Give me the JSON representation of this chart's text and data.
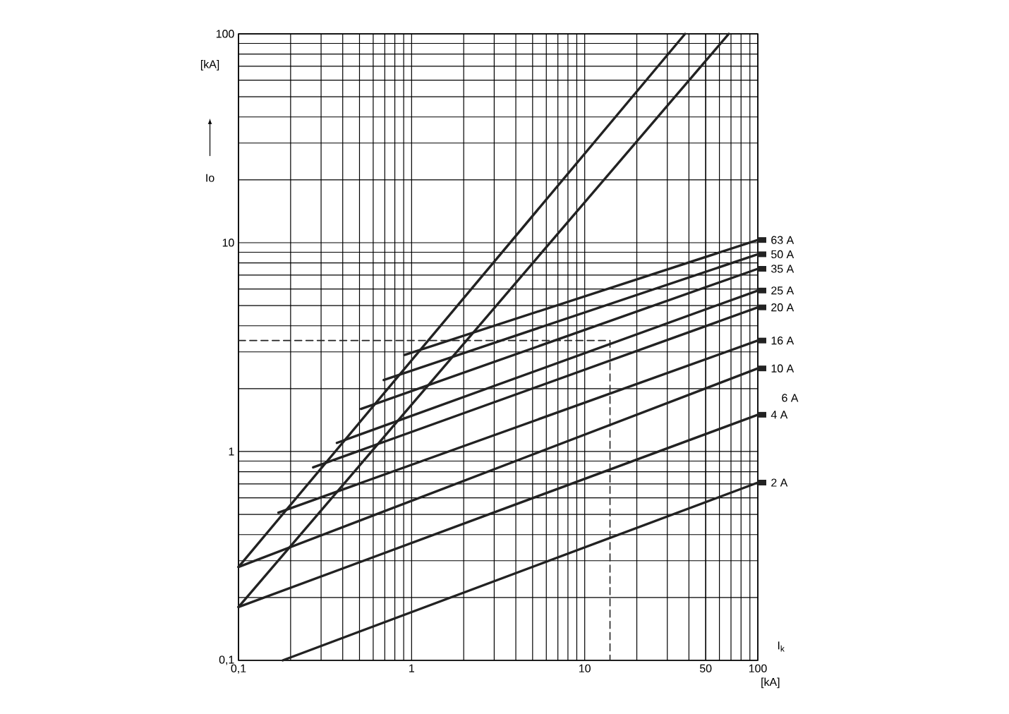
{
  "chart_data": {
    "type": "line",
    "xlabel": "I$_{k}$",
    "ylabel": "Io",
    "log": "xy",
    "grid": true,
    "legend": "right",
    "xlim": [
      0.1,
      100
    ],
    "ylim": [
      0.1,
      100
    ],
    "xticks": [
      {
        "value": 0.1,
        "label": "0,1"
      },
      1,
      10,
      50,
      100
    ],
    "yticks": [
      {
        "value": 0.1,
        "label": "0,1"
      },
      1,
      10,
      100
    ],
    "annotations": [
      "[kA]",
      "[kA]",
      "6 A"
    ],
    "series": [
      {
        "color": "#222222",
        "x": [
          0.1,
          38
        ],
        "values": [
          0.28,
          100
        ]
      },
      {
        "color": "#222222",
        "x": [
          0.1,
          68
        ],
        "values": [
          0.18,
          100
        ]
      },
      {
        "name": "63 A",
        "color": "#222222",
        "x": [
          0.91,
          100
        ],
        "values": [
          2.9,
          10.3
        ]
      },
      {
        "name": "50 A",
        "color": "#222222",
        "x": [
          0.69,
          100
        ],
        "values": [
          2.2,
          8.8
        ]
      },
      {
        "name": "35 A",
        "color": "#222222",
        "x": [
          0.51,
          100
        ],
        "values": [
          1.6,
          7.5
        ]
      },
      {
        "name": "25 A",
        "color": "#222222",
        "x": [
          0.37,
          100
        ],
        "values": [
          1.1,
          5.9
        ]
      },
      {
        "name": "20 A",
        "color": "#222222",
        "x": [
          0.27,
          100
        ],
        "values": [
          0.84,
          4.9
        ]
      },
      {
        "name": "16 A",
        "color": "#222222",
        "x": [
          0.17,
          100
        ],
        "values": [
          0.51,
          3.4
        ]
      },
      {
        "name": "10 A",
        "color": "#222222",
        "x": [
          0.1,
          100
        ],
        "values": [
          0.28,
          2.5
        ]
      },
      {
        "name": "4 A",
        "color": "#222222",
        "x": [
          0.1,
          100
        ],
        "values": [
          0.18,
          1.5
        ]
      },
      {
        "name": "2 A",
        "color": "#222222",
        "x": [
          0.18,
          100
        ],
        "values": [
          0.1,
          0.71
        ]
      },
      {
        "color": "#222222",
        "line_style": "dashed",
        "x": [
          0.1,
          14,
          14
        ],
        "values": [
          3.4,
          3.4,
          0.1
        ]
      }
    ]
  }
}
